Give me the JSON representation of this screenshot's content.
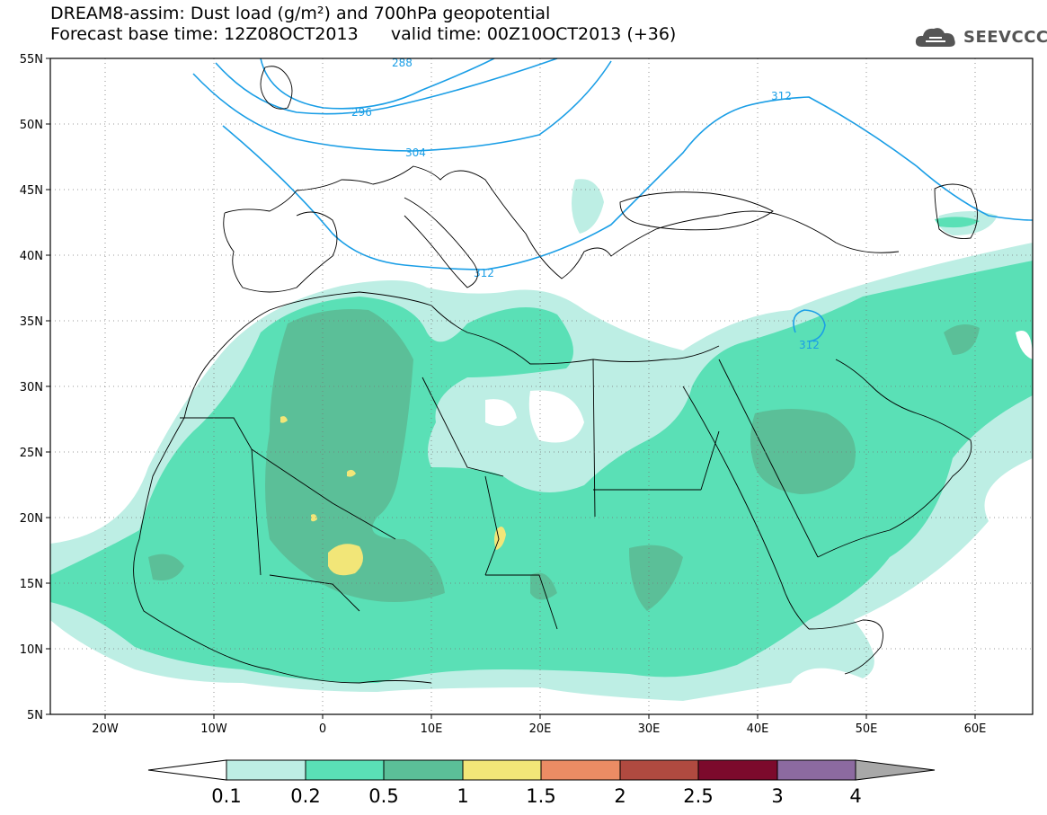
{
  "header": {
    "title_line1": "DREAM8-assim: Dust load (g/m²) and 700hPa geopotential",
    "title_line2": "Forecast base time: 12Z08OCT2013      valid time: 00Z10OCT2013 (+36)",
    "logo_text": "SEEVCCC",
    "logo_icon": "cloud-icon"
  },
  "map": {
    "lat_labels": [
      "55N",
      "50N",
      "45N",
      "40N",
      "35N",
      "30N",
      "25N",
      "20N",
      "15N",
      "10N",
      "5N"
    ],
    "lat_values": [
      55,
      50,
      45,
      40,
      35,
      30,
      25,
      20,
      15,
      10,
      5
    ],
    "lon_labels": [
      "20W",
      "10W",
      "0",
      "10E",
      "20E",
      "30E",
      "40E",
      "50E",
      "60E"
    ],
    "lon_values": [
      -20,
      -10,
      0,
      10,
      20,
      30,
      40,
      50,
      60
    ],
    "lon_range": [
      -25,
      65
    ],
    "lat_range": [
      5,
      55
    ],
    "grid": "dotted",
    "geopotential_contours": [
      {
        "label": "288",
        "color": "#1a9ee6"
      },
      {
        "label": "296",
        "color": "#1a9ee6"
      },
      {
        "label": "304",
        "color": "#1a9ee6"
      },
      {
        "label": "312",
        "color": "#1a9ee6"
      },
      {
        "label": "312",
        "color": "#1a9ee6"
      },
      {
        "label": "312",
        "color": "#1a9ee6"
      }
    ],
    "dust_colors": {
      "level_0_1": "#bdeee4",
      "level_0_2": "#5ae0b6",
      "level_0_5": "#5bbf98",
      "level_1": "#f2e678"
    },
    "coastline_color": "#000000"
  },
  "colorbar": {
    "labels": [
      "0.1",
      "0.2",
      "0.5",
      "1",
      "1.5",
      "2",
      "2.5",
      "3",
      "4"
    ],
    "colors": [
      "#bdeee4",
      "#5ae0b6",
      "#5bbf98",
      "#f2e678",
      "#ec8c64",
      "#b04a40",
      "#7c0a2c",
      "#8c6aa0"
    ],
    "under_color": "#ffffff",
    "over_color": "#a8a8a8"
  }
}
